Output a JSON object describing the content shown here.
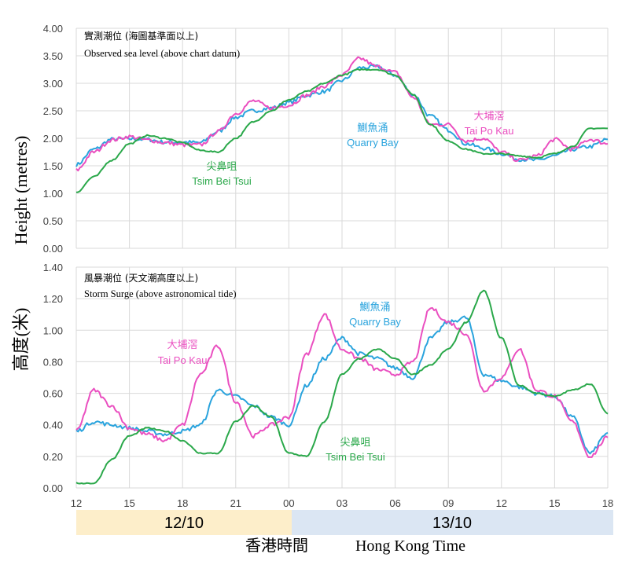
{
  "colors": {
    "quarry_bay": "#29a3dd",
    "tai_po_kau": "#ea4fc0",
    "tsim_bei_tsui": "#2aa84a",
    "date_band_1": "#fdeeca",
    "date_band_2": "#dbe6f3"
  },
  "y_axis_title_en": "Height (metres)",
  "y_axis_title_zh": "高度(米)",
  "x_axis_title_zh": "香港時間",
  "x_axis_title_en": "Hong Kong Time",
  "dates": [
    "12/10",
    "13/10"
  ],
  "x_ticks": [
    "12",
    "15",
    "18",
    "21",
    "00",
    "03",
    "06",
    "09",
    "12",
    "15",
    "18"
  ],
  "chart_data": [
    {
      "type": "line",
      "title_zh": "實測潮位 (海圖基準面以上)",
      "title_en": "Observed sea level (above chart datum)",
      "x_unit": "hours from 12:00 on 12/10 (HKT)",
      "ylim": [
        0,
        4
      ],
      "yticks": [
        "0.00",
        "0.50",
        "1.00",
        "1.50",
        "2.00",
        "2.50",
        "3.00",
        "3.50",
        "4.00"
      ],
      "grid": true,
      "series": [
        {
          "name_zh": "鰂魚涌",
          "name_en": "Quarry Bay",
          "x": [
            0,
            1,
            2,
            3,
            4,
            5,
            6,
            7,
            8,
            9,
            10,
            11,
            12,
            13,
            14,
            15,
            16,
            17,
            18,
            19,
            20,
            21,
            22,
            23,
            24,
            25,
            26,
            27,
            28,
            29,
            30
          ],
          "y": [
            1.52,
            1.8,
            1.98,
            1.99,
            1.98,
            1.93,
            1.93,
            1.92,
            2.12,
            2.38,
            2.5,
            2.55,
            2.65,
            2.78,
            2.85,
            3.05,
            3.28,
            3.3,
            3.15,
            2.8,
            2.4,
            2.15,
            1.9,
            1.82,
            1.72,
            1.62,
            1.6,
            1.68,
            1.8,
            1.85,
            1.98
          ]
        },
        {
          "name_zh": "大埔滘",
          "name_en": "Tai Po Kau",
          "x": [
            0,
            1,
            2,
            3,
            4,
            5,
            6,
            7,
            8,
            9,
            10,
            11,
            12,
            13,
            14,
            15,
            16,
            17,
            18,
            19,
            20,
            21,
            22,
            23,
            24,
            25,
            26,
            27,
            28,
            29,
            30
          ],
          "y": [
            1.42,
            1.75,
            1.97,
            2.03,
            1.97,
            1.92,
            1.88,
            1.88,
            2.12,
            2.45,
            2.68,
            2.55,
            2.6,
            2.78,
            2.95,
            3.15,
            3.45,
            3.3,
            3.2,
            2.75,
            2.25,
            2.25,
            1.95,
            2.0,
            1.75,
            1.6,
            1.68,
            1.98,
            1.8,
            1.98,
            1.9
          ]
        },
        {
          "name_zh": "尖鼻咀",
          "name_en": "Tsim Bei Tsui",
          "x": [
            0,
            1,
            2,
            3,
            4,
            5,
            6,
            7,
            8,
            9,
            10,
            11,
            12,
            13,
            14,
            15,
            16,
            17,
            18,
            19,
            20,
            21,
            22,
            23,
            24,
            25,
            26,
            27,
            28,
            29,
            30
          ],
          "y": [
            1.02,
            1.3,
            1.6,
            1.9,
            2.05,
            2.0,
            1.92,
            1.78,
            1.75,
            2.0,
            2.3,
            2.5,
            2.7,
            2.85,
            3.0,
            3.15,
            3.25,
            3.25,
            3.15,
            2.8,
            2.25,
            1.95,
            1.8,
            1.72,
            1.72,
            1.68,
            1.65,
            1.72,
            1.85,
            2.18,
            2.18
          ]
        }
      ]
    },
    {
      "type": "line",
      "title_zh": "風暴潮位 (天文潮高度以上)",
      "title_en": "Storm Surge (above astronomical tide)",
      "x_unit": "hours from 12:00 on 12/10 (HKT)",
      "ylim": [
        0,
        1.4
      ],
      "yticks": [
        "0.00",
        "0.20",
        "0.40",
        "0.60",
        "0.80",
        "1.00",
        "1.20",
        "1.40"
      ],
      "grid": true,
      "series": [
        {
          "name_zh": "鰂魚涌",
          "name_en": "Quarry Bay",
          "x": [
            0,
            1,
            2,
            3,
            4,
            5,
            6,
            7,
            8,
            9,
            10,
            11,
            12,
            13,
            14,
            15,
            16,
            17,
            18,
            19,
            20,
            21,
            22,
            23,
            24,
            25,
            26,
            27,
            28,
            29,
            30
          ],
          "y": [
            0.36,
            0.42,
            0.4,
            0.38,
            0.36,
            0.34,
            0.36,
            0.4,
            0.62,
            0.58,
            0.52,
            0.45,
            0.4,
            0.65,
            0.82,
            0.95,
            0.85,
            0.82,
            0.76,
            0.7,
            0.95,
            1.05,
            1.08,
            0.72,
            0.68,
            0.64,
            0.6,
            0.58,
            0.45,
            0.22,
            0.35
          ]
        },
        {
          "name_zh": "大埔滘",
          "name_en": "Tai Po Kau",
          "x": [
            0,
            1,
            2,
            3,
            4,
            5,
            6,
            7,
            8,
            9,
            10,
            11,
            12,
            13,
            14,
            15,
            16,
            17,
            18,
            19,
            20,
            21,
            22,
            23,
            24,
            25,
            26,
            27,
            28,
            29,
            30
          ],
          "y": [
            0.36,
            0.62,
            0.52,
            0.38,
            0.34,
            0.3,
            0.4,
            0.72,
            0.9,
            0.55,
            0.33,
            0.4,
            0.45,
            0.85,
            1.1,
            0.88,
            0.82,
            0.75,
            0.72,
            0.8,
            1.14,
            1.05,
            0.98,
            0.62,
            0.7,
            0.88,
            0.62,
            0.58,
            0.42,
            0.2,
            0.32
          ]
        },
        {
          "name_zh": "尖鼻咀",
          "name_en": "Tsim Bei Tsui",
          "x": [
            0,
            1,
            2,
            3,
            4,
            5,
            6,
            7,
            8,
            9,
            10,
            11,
            12,
            13,
            14,
            15,
            16,
            17,
            18,
            19,
            20,
            21,
            22,
            23,
            24,
            25,
            26,
            27,
            28,
            29,
            30
          ],
          "y": [
            0.03,
            0.03,
            0.18,
            0.33,
            0.38,
            0.36,
            0.3,
            0.22,
            0.22,
            0.42,
            0.52,
            0.45,
            0.22,
            0.2,
            0.42,
            0.72,
            0.82,
            0.88,
            0.82,
            0.72,
            0.78,
            0.88,
            1.05,
            1.25,
            0.95,
            0.65,
            0.6,
            0.58,
            0.62,
            0.66,
            0.47
          ]
        }
      ]
    }
  ]
}
